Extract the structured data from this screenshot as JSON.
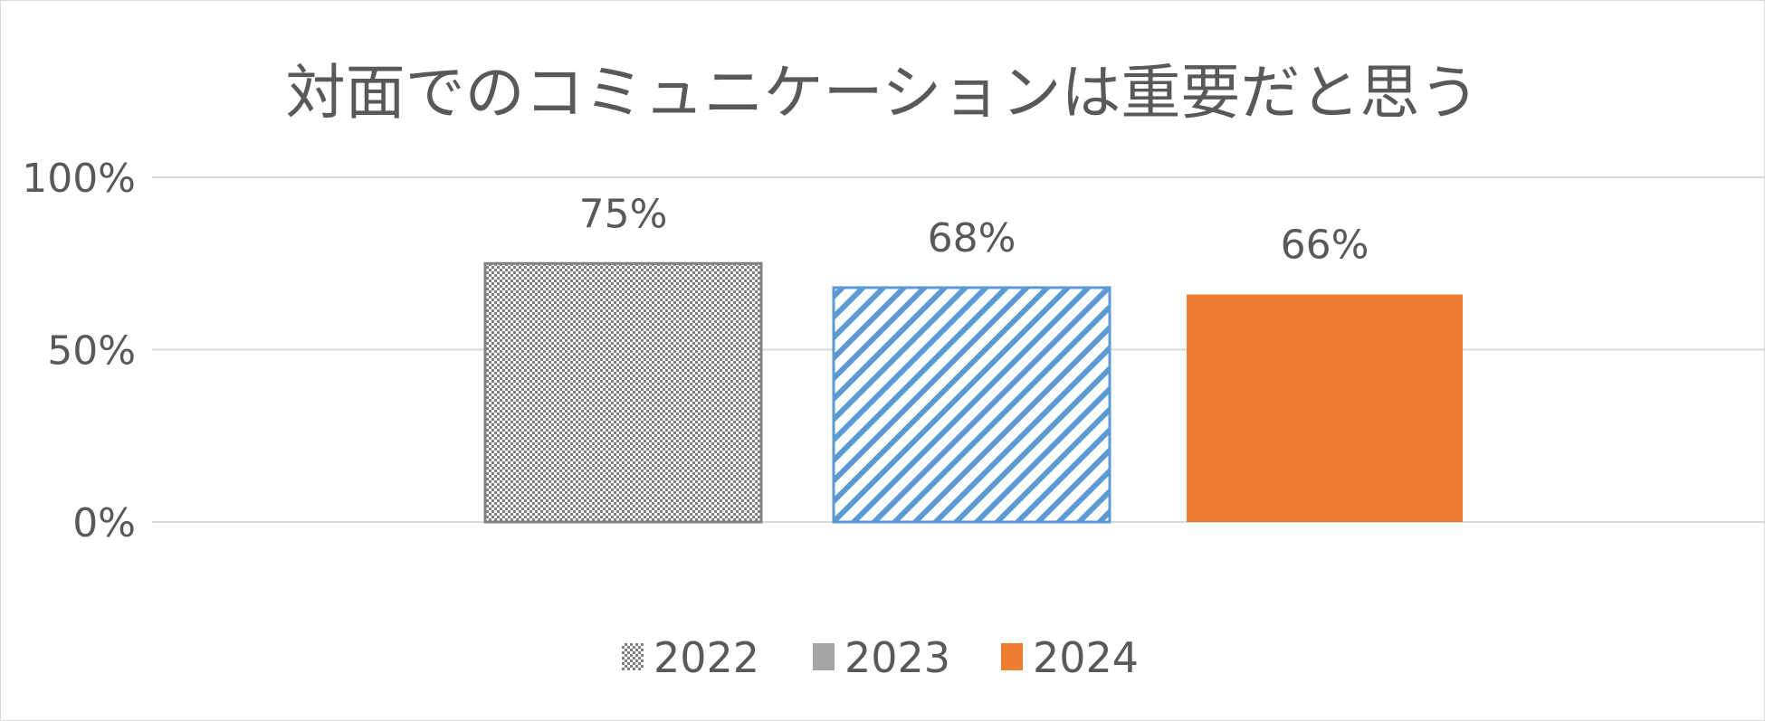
{
  "chart_data": {
    "type": "bar",
    "title": "対面でのコミュニケーションは重要だと思う",
    "categories": [
      "2022",
      "2023",
      "2024"
    ],
    "values": [
      75,
      68,
      66
    ],
    "data_labels": [
      "75%",
      "68%",
      "66%"
    ],
    "ylim": [
      0,
      100
    ],
    "yticks": [
      0,
      50,
      100
    ],
    "ytick_labels": [
      "0%",
      "50%",
      "100%"
    ],
    "xlabel": "",
    "ylabel": "",
    "grid": true,
    "legend": {
      "placement": "bottom",
      "entries": [
        "2022",
        "2023",
        "2024"
      ]
    },
    "series_styles": [
      {
        "name": "2022",
        "fill": "checker",
        "color": "#808080"
      },
      {
        "name": "2023",
        "fill": "diagonal-stripes",
        "color": "#5b9bd5",
        "legend_color": "#a5a5a5"
      },
      {
        "name": "2024",
        "fill": "solid",
        "color": "#ed7d31"
      }
    ]
  }
}
